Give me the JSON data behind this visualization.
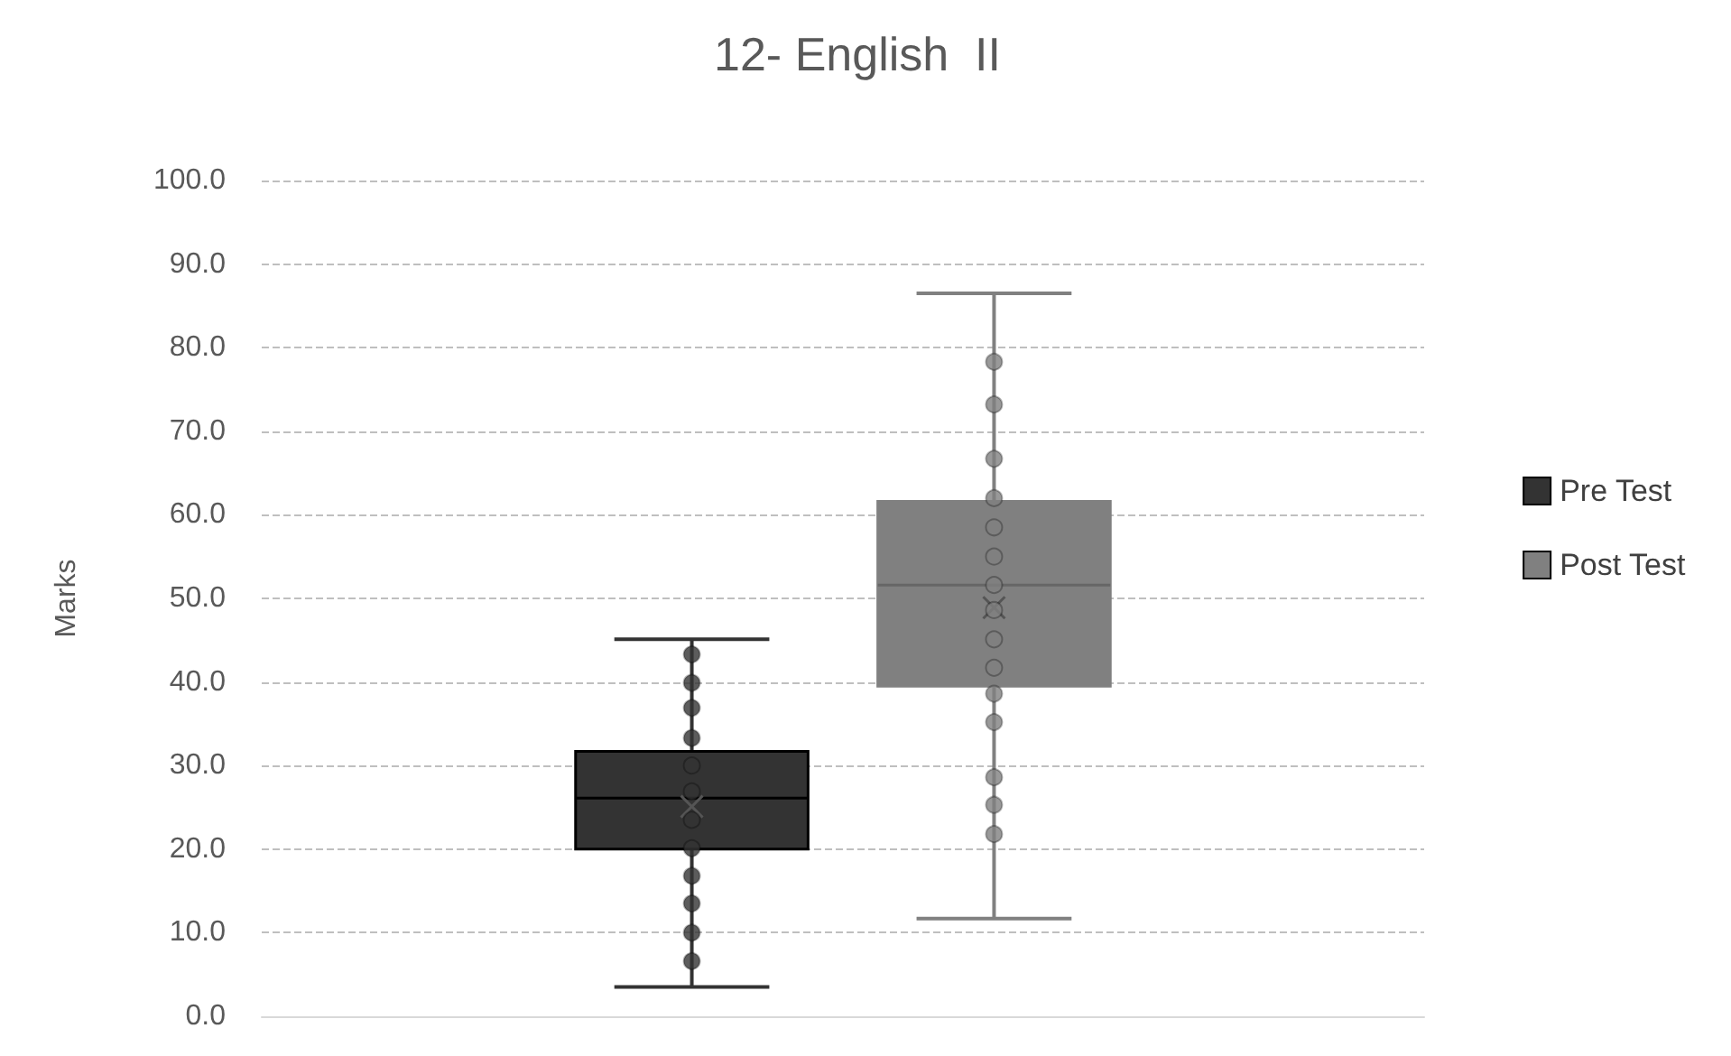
{
  "chart_data": {
    "type": "box",
    "title": "12- English  II",
    "ylabel": "Marks",
    "categories": [
      null
    ],
    "ylim": [
      0,
      100
    ],
    "yticks": [
      {
        "value": 0,
        "label": "0.0"
      },
      {
        "value": 10,
        "label": "10.0"
      },
      {
        "value": 20,
        "label": "20.0"
      },
      {
        "value": 30,
        "label": "30.0"
      },
      {
        "value": 40,
        "label": "40.0"
      },
      {
        "value": 50,
        "label": "50.0"
      },
      {
        "value": 60,
        "label": "60.0"
      },
      {
        "value": 70,
        "label": "70.0"
      },
      {
        "value": 80,
        "label": "80.0"
      },
      {
        "value": 90,
        "label": "90.0"
      },
      {
        "value": 100,
        "label": "100.0"
      }
    ],
    "grid": "y",
    "legend": "right",
    "marker": "circle",
    "series": [
      {
        "name": "Pre Test",
        "color": "#333333",
        "boxes": [
          {
            "low": 3.5,
            "q1": 20.0,
            "median": 26.1,
            "q3": 31.7,
            "high": 45.1,
            "mean": 25.1
          }
        ]
      },
      {
        "name": "Post Test",
        "color": "#808080",
        "boxes": [
          {
            "low": 11.7,
            "q1": 39.5,
            "median": 51.6,
            "q3": 61.6,
            "high": 86.5,
            "mean": 48.9
          }
        ]
      },
      {
        "type": "scatter",
        "color": "#333333",
        "x": [
          null,
          null,
          null,
          null,
          null,
          null,
          null,
          null,
          null,
          null,
          null,
          null
        ],
        "values": [
          43.3,
          39.9,
          36.9,
          33.3,
          30.0,
          26.9,
          23.5,
          20.1,
          16.8,
          13.5,
          10.0,
          6.6
        ]
      },
      {
        "type": "scatter",
        "color": "#808080",
        "x": [
          null,
          null,
          null,
          null,
          null,
          null,
          null,
          null,
          null,
          null,
          null,
          null,
          null,
          null,
          null
        ],
        "values": [
          78.3,
          73.2,
          66.7,
          62.0,
          58.5,
          55.0,
          51.6,
          48.6,
          45.1,
          41.7,
          38.6,
          35.2,
          28.6,
          25.3,
          21.8
        ]
      }
    ]
  }
}
